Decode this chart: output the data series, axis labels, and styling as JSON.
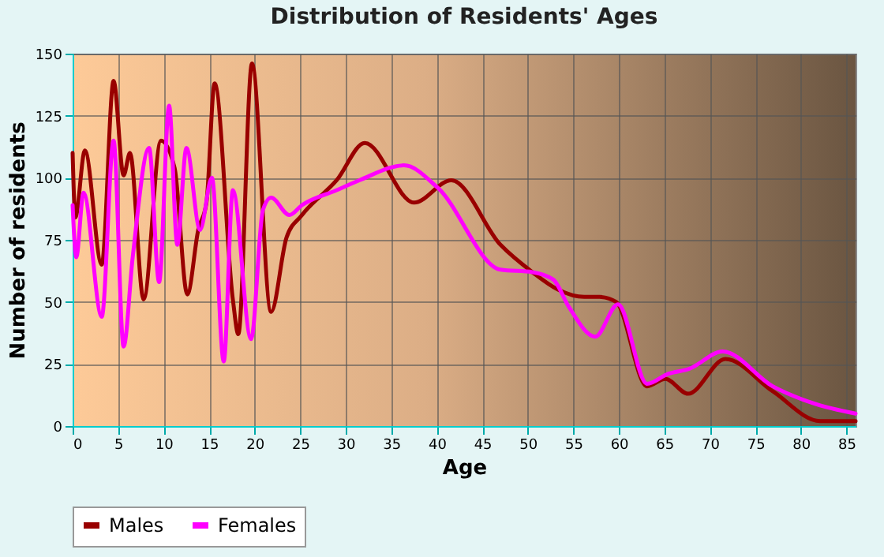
{
  "chart_data": {
    "type": "line",
    "title": "Distribution of Residents' Ages",
    "xlabel": "Age",
    "ylabel": "Number of residents",
    "xlim": [
      0,
      86
    ],
    "xticks": [
      0,
      5,
      10,
      15,
      20,
      25,
      30,
      35,
      40,
      45,
      50,
      55,
      60,
      65,
      70,
      75,
      80,
      85
    ],
    "ylim": [
      0,
      150
    ],
    "yticks": [
      0,
      25,
      50,
      75,
      100,
      125,
      150
    ],
    "grid": true,
    "legend": "bottom",
    "series": [
      {
        "name": "Males",
        "color": "#990000",
        "x": [
          0,
          0.3,
          1.35,
          3.2,
          4.5,
          5.6,
          6.3,
          7.8,
          9.7,
          11.2,
          12.6,
          13.8,
          14.7,
          15.6,
          17.6,
          18.2,
          19.7,
          21.8,
          23.5,
          25.2,
          29,
          32.1,
          37.5,
          41.6,
          47,
          50.5,
          53.3,
          56.2,
          57.9,
          59.7,
          63.1,
          65.1,
          67.6,
          71.7,
          76.9,
          82.1,
          86
        ],
        "values": [
          110,
          84,
          111,
          65,
          139,
          101,
          110,
          51,
          115,
          104,
          53,
          79,
          90,
          138,
          51,
          37,
          146,
          46,
          76,
          85,
          99,
          114,
          90,
          99,
          73,
          62,
          55,
          52,
          52,
          50,
          16,
          19,
          13,
          27,
          14,
          2,
          2
        ]
      },
      {
        "name": "Females",
        "color": "#ff00ff",
        "x": [
          0,
          0.4,
          1.2,
          3.2,
          4.5,
          5.6,
          6.6,
          8.4,
          9.5,
          10.6,
          11.5,
          12.5,
          14,
          15.3,
          16.6,
          17.6,
          19.6,
          20.9,
          21.8,
          23.8,
          25.2,
          29,
          31.5,
          36.4,
          40.1,
          47,
          50.5,
          52.8,
          54.5,
          57.4,
          59.9,
          63.1,
          65.4,
          67.7,
          71.4,
          76.9,
          81.5,
          86
        ],
        "values": [
          89,
          68,
          94,
          44,
          115,
          32,
          68,
          112,
          58,
          129,
          73,
          112,
          79,
          100,
          26,
          95,
          35,
          87,
          92,
          85,
          89,
          95,
          99,
          105,
          96,
          63,
          62,
          59,
          48,
          36,
          49,
          17,
          21,
          23,
          30,
          16,
          9,
          5
        ]
      }
    ]
  }
}
